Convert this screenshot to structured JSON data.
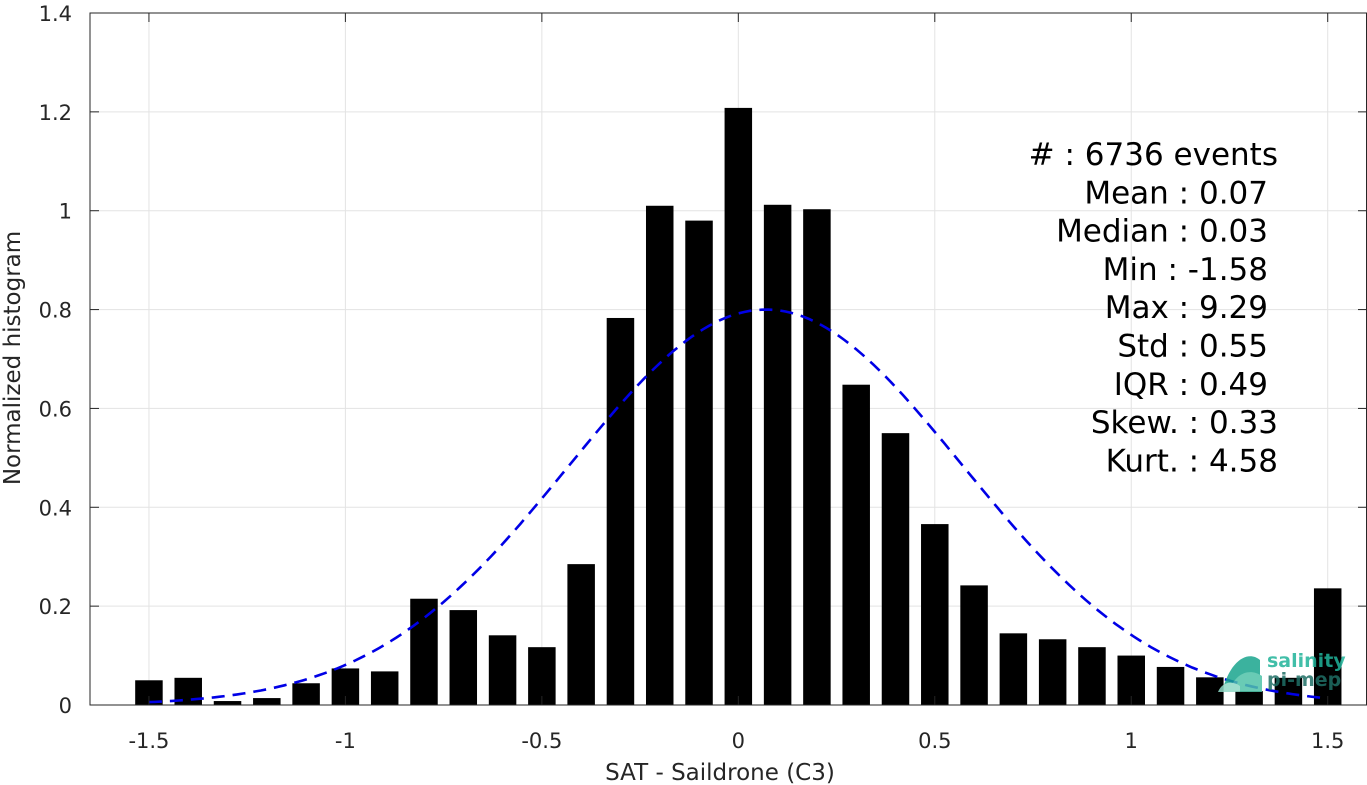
{
  "chart_data": {
    "type": "bar",
    "title": "",
    "xlabel": "SAT - Saildrone (C3)",
    "ylabel": "Normalized histogram",
    "xlim": [
      -1.65,
      1.6
    ],
    "ylim": [
      0,
      1.4
    ],
    "grid": true,
    "x_ticks": [
      -1.5,
      -1,
      -0.5,
      0,
      0.5,
      1,
      1.5
    ],
    "x_tick_labels": [
      "-1.5",
      "-1",
      "-0.5",
      "0",
      "0.5",
      "1",
      "1.5"
    ],
    "y_ticks": [
      0,
      0.2,
      0.4,
      0.6,
      0.8,
      1,
      1.2,
      1.4
    ],
    "y_tick_labels": [
      "0",
      "0.2",
      "0.4",
      "0.6",
      "0.8",
      "1",
      "1.2",
      "1.4"
    ],
    "bar_width": 0.07,
    "x": [
      -1.5,
      -1.4,
      -1.3,
      -1.2,
      -1.1,
      -1.0,
      -0.9,
      -0.8,
      -0.7,
      -0.6,
      -0.5,
      -0.4,
      -0.3,
      -0.2,
      -0.1,
      0.0,
      0.1,
      0.2,
      0.3,
      0.4,
      0.5,
      0.6,
      0.7,
      0.8,
      0.9,
      1.0,
      1.1,
      1.2,
      1.3,
      1.4,
      1.5
    ],
    "values": [
      0.05,
      0.055,
      0.008,
      0.014,
      0.044,
      0.074,
      0.068,
      0.215,
      0.192,
      0.141,
      0.117,
      0.285,
      0.783,
      1.01,
      0.98,
      1.208,
      1.012,
      1.003,
      0.648,
      0.55,
      0.366,
      0.242,
      0.145,
      0.133,
      0.117,
      0.1,
      0.077,
      0.056,
      0.028,
      0.055,
      0.236
    ],
    "bar_color": "#000000",
    "fit_curve": {
      "type": "gaussian",
      "style": "dashed",
      "color": "#0000e6",
      "mean": 0.07,
      "std": 0.5,
      "peak": 0.8,
      "x_range": [
        -1.5,
        1.5
      ]
    }
  },
  "stats": {
    "lines": [
      "#  : 6736 events",
      "Mean : 0.07",
      "Median : 0.03",
      "Min : -1.58",
      "Max : 9.29",
      "Std : 0.55",
      "IQR : 0.49",
      "Skew. : 0.33",
      "Kurt. : 4.58"
    ]
  },
  "logo": {
    "line1": "salinity",
    "line2": "pi-mep",
    "color": "#20b39a"
  }
}
